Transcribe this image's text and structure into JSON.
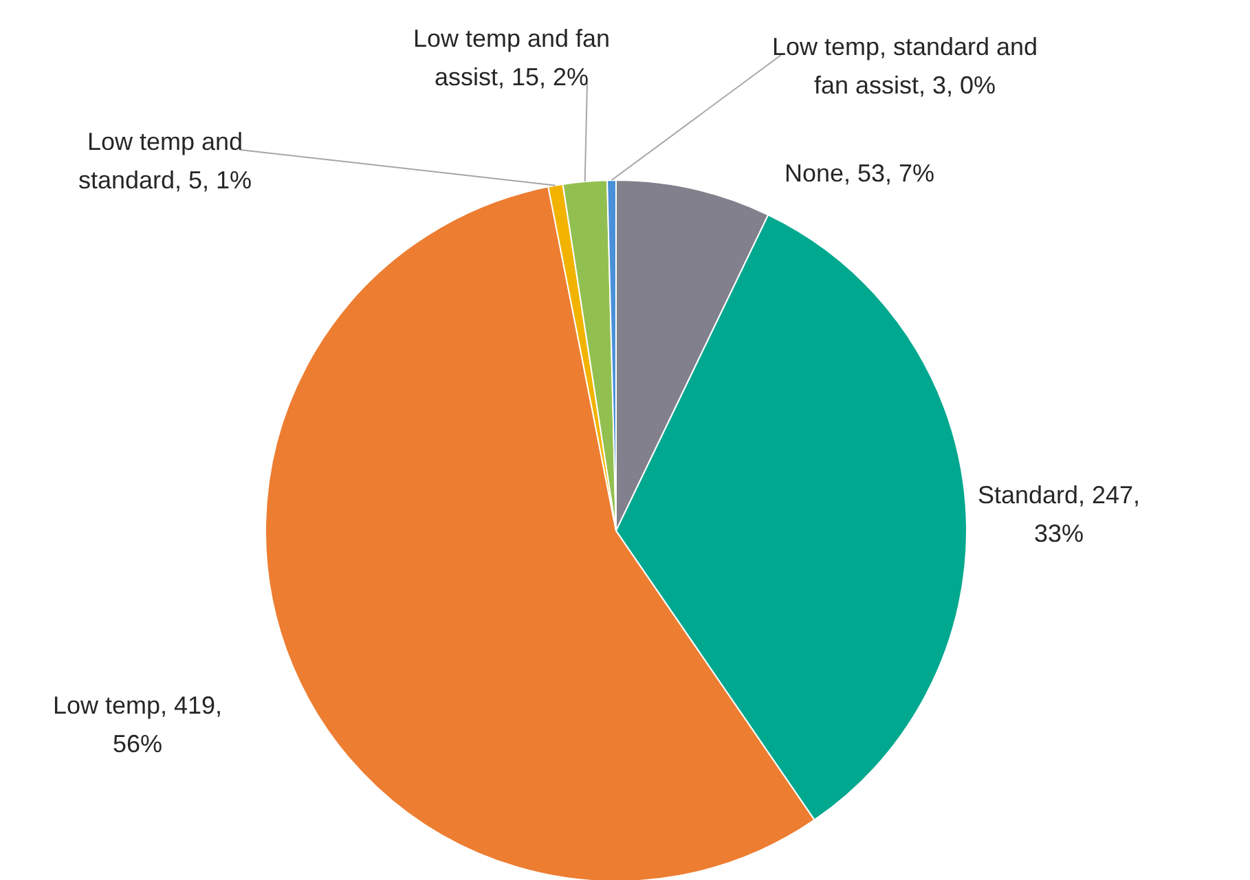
{
  "chart_data": {
    "type": "pie",
    "categories": [
      "None",
      "Standard",
      "Low temp",
      "Low temp and standard",
      "Low temp and fan assist",
      "Low temp, standard and fan assist"
    ],
    "values": [
      53,
      247,
      419,
      5,
      15,
      3
    ],
    "value_labels": [
      "53, 7%",
      "247, 33%",
      "419, 56%",
      "5, 1%",
      "15, 2%",
      "3, 0%"
    ],
    "colors": [
      "#81808c",
      "#00a88f",
      "#ed7d31",
      "#f2b300",
      "#92c050",
      "#4a90d9"
    ]
  }
}
